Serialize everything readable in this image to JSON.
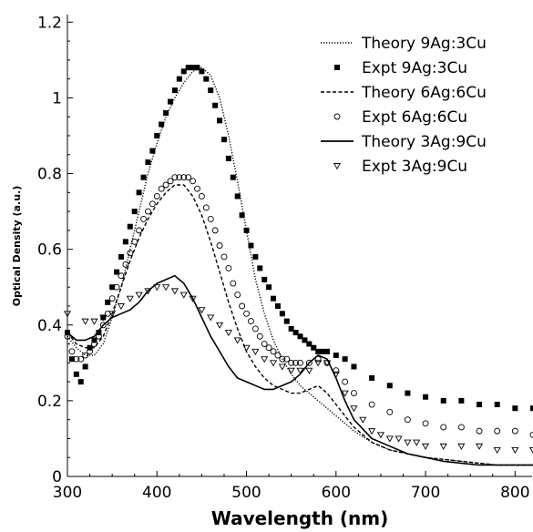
{
  "chart_data": {
    "type": "line",
    "xlabel": "Wavelength (nm)",
    "ylabel": "Optical Density (a.u.)",
    "xlim": [
      300,
      820
    ],
    "ylim": [
      0,
      1.22
    ],
    "x_ticks": [
      300,
      400,
      500,
      600,
      700,
      800
    ],
    "y_ticks": [
      0,
      0.2,
      0.4,
      0.6,
      0.8,
      1,
      1.2
    ],
    "y_tick_labels": [
      "0",
      "0.2",
      "0.4",
      "0.6",
      "0.8",
      "1",
      "1.2"
    ],
    "grid": false,
    "legend_position": "top-right",
    "series": [
      {
        "name": "Theory 9Ag:3Cu",
        "kind": "line",
        "dash": "dotted",
        "x": [
          300,
          310,
          320,
          330,
          340,
          350,
          360,
          370,
          380,
          390,
          400,
          410,
          420,
          430,
          440,
          450,
          460,
          470,
          480,
          490,
          500,
          510,
          520,
          530,
          540,
          550,
          560,
          570,
          580,
          590,
          600,
          620,
          640,
          660,
          680,
          700,
          720,
          740,
          760,
          780,
          800,
          820
        ],
        "y": [
          0.37,
          0.34,
          0.32,
          0.32,
          0.35,
          0.42,
          0.5,
          0.6,
          0.7,
          0.8,
          0.88,
          0.95,
          1.0,
          1.04,
          1.07,
          1.08,
          1.06,
          1.0,
          0.9,
          0.78,
          0.65,
          0.52,
          0.43,
          0.36,
          0.31,
          0.27,
          0.24,
          0.22,
          0.2,
          0.18,
          0.16,
          0.12,
          0.09,
          0.07,
          0.06,
          0.05,
          0.045,
          0.04,
          0.035,
          0.03,
          0.03,
          0.03
        ]
      },
      {
        "name": "Expt 9Ag:3Cu",
        "kind": "marker",
        "marker": "filled-square",
        "x": [
          300,
          305,
          310,
          315,
          320,
          325,
          330,
          335,
          340,
          345,
          350,
          355,
          360,
          365,
          370,
          375,
          380,
          385,
          390,
          395,
          400,
          405,
          410,
          415,
          420,
          425,
          430,
          435,
          440,
          445,
          450,
          455,
          460,
          465,
          470,
          475,
          480,
          485,
          490,
          495,
          500,
          505,
          510,
          515,
          520,
          525,
          530,
          535,
          540,
          545,
          550,
          555,
          560,
          565,
          570,
          575,
          580,
          585,
          590,
          600,
          610,
          620,
          640,
          660,
          680,
          700,
          720,
          740,
          760,
          780,
          800,
          820
        ],
        "y": [
          0.38,
          0.31,
          0.27,
          0.25,
          0.29,
          0.34,
          0.36,
          0.38,
          0.42,
          0.46,
          0.5,
          0.54,
          0.58,
          0.62,
          0.66,
          0.7,
          0.75,
          0.79,
          0.83,
          0.86,
          0.9,
          0.93,
          0.96,
          0.99,
          1.02,
          1.05,
          1.07,
          1.08,
          1.08,
          1.08,
          1.07,
          1.05,
          1.02,
          0.98,
          0.94,
          0.89,
          0.84,
          0.79,
          0.74,
          0.69,
          0.65,
          0.61,
          0.58,
          0.55,
          0.52,
          0.5,
          0.47,
          0.45,
          0.43,
          0.41,
          0.39,
          0.38,
          0.37,
          0.36,
          0.35,
          0.34,
          0.33,
          0.33,
          0.33,
          0.32,
          0.31,
          0.29,
          0.26,
          0.24,
          0.22,
          0.21,
          0.2,
          0.2,
          0.19,
          0.19,
          0.18,
          0.18
        ]
      },
      {
        "name": "Theory 6Ag:6Cu",
        "kind": "line",
        "dash": "dashed",
        "x": [
          300,
          310,
          320,
          330,
          340,
          350,
          360,
          370,
          380,
          390,
          400,
          410,
          420,
          430,
          440,
          450,
          460,
          470,
          480,
          490,
          500,
          510,
          520,
          530,
          540,
          550,
          560,
          570,
          580,
          590,
          600,
          620,
          640,
          660,
          680,
          700,
          720,
          740,
          760,
          780,
          800,
          820
        ],
        "y": [
          0.38,
          0.35,
          0.34,
          0.34,
          0.37,
          0.43,
          0.5,
          0.57,
          0.63,
          0.68,
          0.72,
          0.75,
          0.77,
          0.77,
          0.74,
          0.69,
          0.62,
          0.54,
          0.46,
          0.39,
          0.33,
          0.29,
          0.26,
          0.24,
          0.23,
          0.22,
          0.22,
          0.23,
          0.24,
          0.22,
          0.19,
          0.13,
          0.09,
          0.07,
          0.06,
          0.05,
          0.045,
          0.04,
          0.035,
          0.03,
          0.03,
          0.03
        ]
      },
      {
        "name": "Expt 6Ag:6Cu",
        "kind": "marker",
        "marker": "open-circle",
        "x": [
          300,
          305,
          310,
          315,
          320,
          325,
          330,
          335,
          340,
          345,
          350,
          355,
          360,
          365,
          370,
          375,
          380,
          385,
          390,
          395,
          400,
          405,
          410,
          415,
          420,
          425,
          430,
          435,
          440,
          445,
          450,
          455,
          460,
          465,
          470,
          475,
          480,
          485,
          490,
          495,
          500,
          505,
          510,
          515,
          520,
          525,
          530,
          535,
          540,
          545,
          550,
          555,
          560,
          570,
          580,
          590,
          600,
          610,
          620,
          640,
          660,
          680,
          700,
          720,
          740,
          760,
          780,
          800,
          820
        ],
        "y": [
          0.37,
          0.33,
          0.31,
          0.31,
          0.32,
          0.33,
          0.35,
          0.37,
          0.4,
          0.43,
          0.47,
          0.5,
          0.53,
          0.56,
          0.59,
          0.62,
          0.65,
          0.68,
          0.7,
          0.72,
          0.74,
          0.76,
          0.77,
          0.78,
          0.79,
          0.79,
          0.79,
          0.79,
          0.78,
          0.76,
          0.74,
          0.71,
          0.68,
          0.65,
          0.61,
          0.58,
          0.55,
          0.51,
          0.48,
          0.45,
          0.43,
          0.41,
          0.39,
          0.37,
          0.35,
          0.34,
          0.33,
          0.32,
          0.31,
          0.31,
          0.3,
          0.3,
          0.3,
          0.3,
          0.31,
          0.3,
          0.28,
          0.25,
          0.22,
          0.19,
          0.17,
          0.15,
          0.14,
          0.13,
          0.13,
          0.12,
          0.12,
          0.12,
          0.11
        ]
      },
      {
        "name": "Theory 3Ag:9Cu",
        "kind": "line",
        "dash": "solid",
        "x": [
          300,
          310,
          320,
          330,
          340,
          350,
          360,
          370,
          380,
          390,
          400,
          410,
          420,
          430,
          440,
          450,
          460,
          470,
          480,
          490,
          500,
          510,
          520,
          530,
          540,
          550,
          560,
          570,
          580,
          590,
          600,
          610,
          620,
          640,
          660,
          680,
          700,
          720,
          740,
          760,
          780,
          800,
          820
        ],
        "y": [
          0.38,
          0.36,
          0.36,
          0.37,
          0.4,
          0.42,
          0.43,
          0.44,
          0.46,
          0.49,
          0.51,
          0.52,
          0.53,
          0.51,
          0.47,
          0.42,
          0.37,
          0.33,
          0.29,
          0.26,
          0.25,
          0.24,
          0.23,
          0.23,
          0.24,
          0.25,
          0.27,
          0.3,
          0.32,
          0.31,
          0.26,
          0.2,
          0.15,
          0.1,
          0.08,
          0.06,
          0.05,
          0.04,
          0.035,
          0.03,
          0.03,
          0.03,
          0.03
        ]
      },
      {
        "name": "Expt 3Ag:9Cu",
        "kind": "marker",
        "marker": "open-triangle-down",
        "x": [
          300,
          320,
          330,
          340,
          350,
          360,
          370,
          380,
          390,
          400,
          410,
          420,
          430,
          440,
          450,
          460,
          470,
          480,
          490,
          500,
          510,
          520,
          530,
          540,
          550,
          560,
          570,
          580,
          590,
          600,
          610,
          620,
          630,
          640,
          650,
          660,
          670,
          680,
          690,
          700,
          720,
          740,
          760,
          780,
          800,
          820
        ],
        "y": [
          0.43,
          0.41,
          0.41,
          0.42,
          0.43,
          0.45,
          0.47,
          0.48,
          0.49,
          0.5,
          0.5,
          0.49,
          0.48,
          0.47,
          0.44,
          0.42,
          0.4,
          0.38,
          0.36,
          0.34,
          0.33,
          0.31,
          0.3,
          0.29,
          0.28,
          0.28,
          0.28,
          0.3,
          0.3,
          0.27,
          0.22,
          0.18,
          0.15,
          0.12,
          0.11,
          0.1,
          0.1,
          0.09,
          0.09,
          0.08,
          0.08,
          0.08,
          0.08,
          0.07,
          0.07,
          0.07
        ]
      }
    ]
  }
}
